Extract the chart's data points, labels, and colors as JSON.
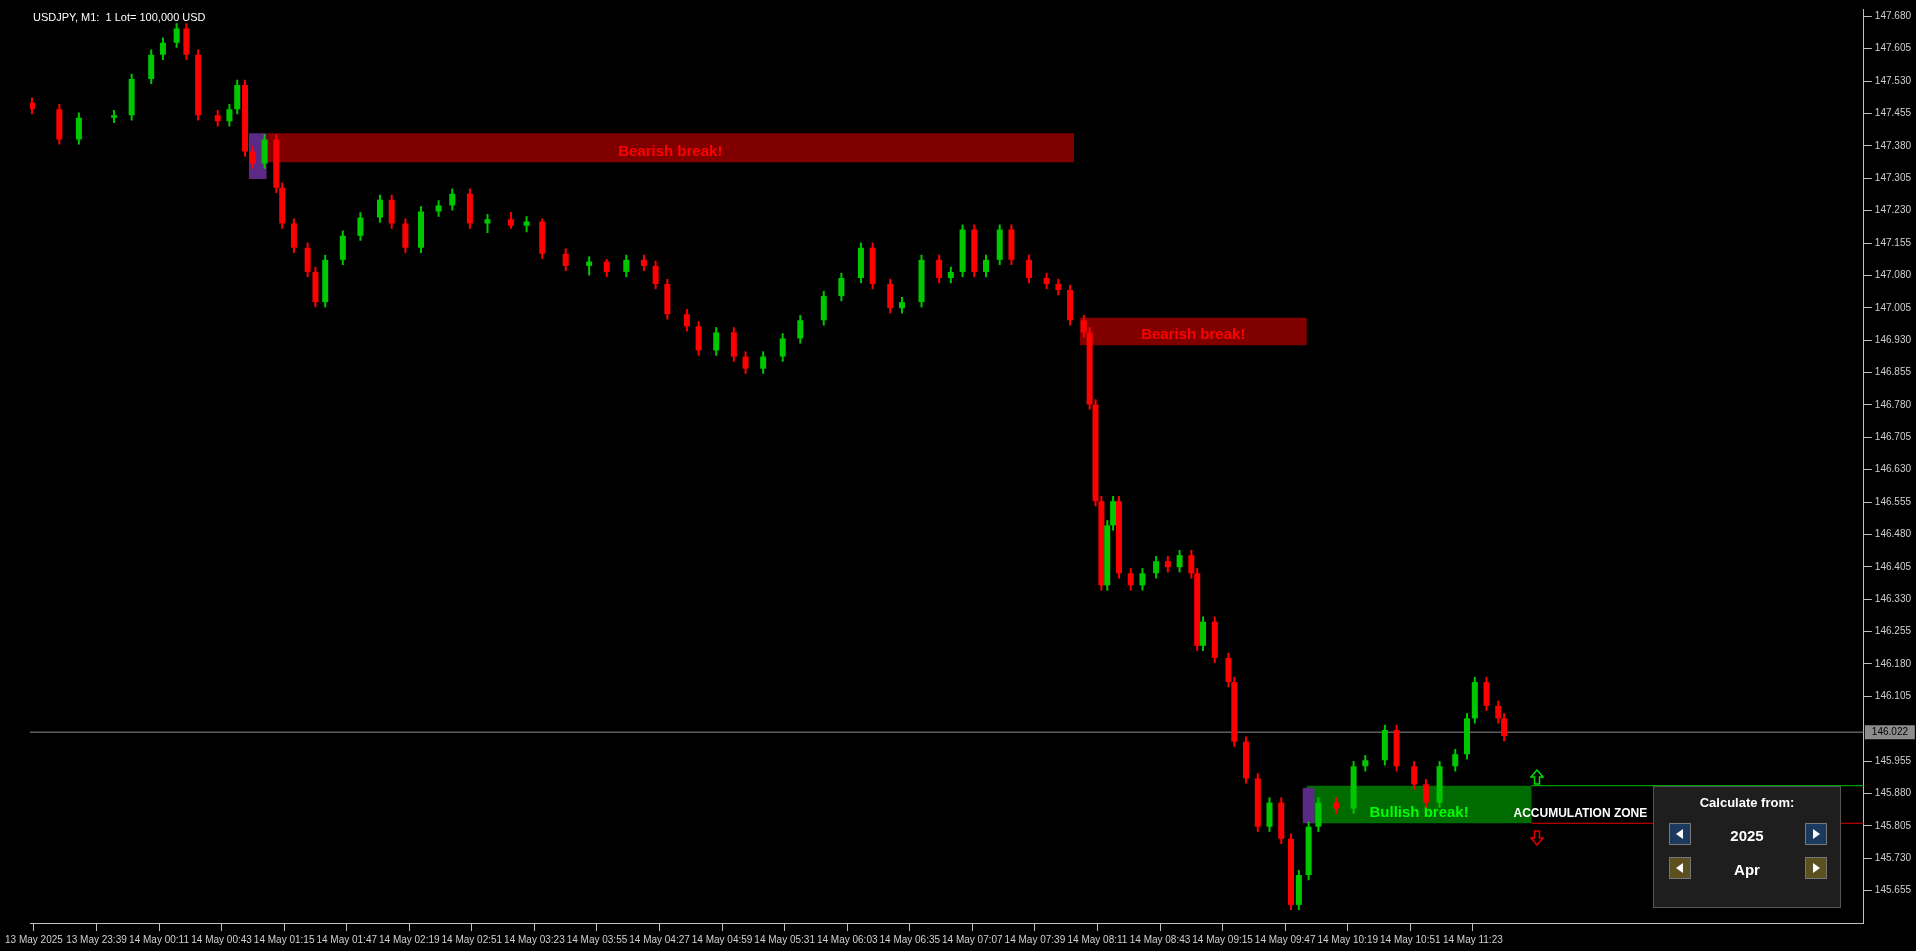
{
  "chart_data": {
    "type": "candlestick",
    "title": "USDJPY, M1:  1 Lot= 100,000 USD",
    "x": [
      "2025-05-13T23:06",
      "2025-05-13T23:20",
      "2025-05-13T23:30",
      "2025-05-13T23:48",
      "2025-05-13T23:57",
      "2025-05-14T00:07",
      "2025-05-14T00:13",
      "2025-05-14T00:20",
      "2025-05-14T00:25",
      "2025-05-14T00:31",
      "2025-05-14T00:41",
      "2025-05-14T00:47",
      "2025-05-14T00:51",
      "2025-05-14T00:55",
      "2025-05-14T00:59",
      "2025-05-14T01:05",
      "2025-05-14T01:11",
      "2025-05-14T01:14",
      "2025-05-14T01:20",
      "2025-05-14T01:27",
      "2025-05-14T01:31",
      "2025-05-14T01:36",
      "2025-05-14T01:45",
      "2025-05-14T01:54",
      "2025-05-14T02:04",
      "2025-05-14T02:10",
      "2025-05-14T02:17",
      "2025-05-14T02:25",
      "2025-05-14T02:34",
      "2025-05-14T02:41",
      "2025-05-14T02:50",
      "2025-05-14T02:59",
      "2025-05-14T03:11",
      "2025-05-14T03:19",
      "2025-05-14T03:27",
      "2025-05-14T03:39",
      "2025-05-14T03:51",
      "2025-05-14T04:00",
      "2025-05-14T04:10",
      "2025-05-14T04:19",
      "2025-05-14T04:25",
      "2025-05-14T04:31",
      "2025-05-14T04:41",
      "2025-05-14T04:47",
      "2025-05-14T04:56",
      "2025-05-14T05:05",
      "2025-05-14T05:11",
      "2025-05-14T05:20",
      "2025-05-14T05:30",
      "2025-05-14T05:39",
      "2025-05-14T05:51",
      "2025-05-14T06:00",
      "2025-05-14T06:10",
      "2025-05-14T06:16",
      "2025-05-14T06:25",
      "2025-05-14T06:31",
      "2025-05-14T06:41",
      "2025-05-14T06:50",
      "2025-05-14T06:56",
      "2025-05-14T07:02",
      "2025-05-14T07:08",
      "2025-05-14T07:14",
      "2025-05-14T07:21",
      "2025-05-14T07:27",
      "2025-05-14T07:36",
      "2025-05-14T07:45",
      "2025-05-14T07:51",
      "2025-05-14T07:57",
      "2025-05-14T08:04",
      "2025-05-14T08:07",
      "2025-05-14T08:10",
      "2025-05-14T08:13",
      "2025-05-14T08:16",
      "2025-05-14T08:19",
      "2025-05-14T08:22",
      "2025-05-14T08:28",
      "2025-05-14T08:34",
      "2025-05-14T08:41",
      "2025-05-14T08:47",
      "2025-05-14T08:53",
      "2025-05-14T08:59",
      "2025-05-14T09:02",
      "2025-05-14T09:05",
      "2025-05-14T09:11",
      "2025-05-14T09:18",
      "2025-05-14T09:21",
      "2025-05-14T09:27",
      "2025-05-14T09:33",
      "2025-05-14T09:39",
      "2025-05-14T09:45",
      "2025-05-14T09:50",
      "2025-05-14T09:54",
      "2025-05-14T09:59",
      "2025-05-14T10:04",
      "2025-05-14T10:13",
      "2025-05-14T10:22",
      "2025-05-14T10:28",
      "2025-05-14T10:38",
      "2025-05-14T10:44",
      "2025-05-14T10:53",
      "2025-05-14T10:59",
      "2025-05-14T11:06",
      "2025-05-14T11:14",
      "2025-05-14T11:20",
      "2025-05-14T11:24",
      "2025-05-14T11:30",
      "2025-05-14T11:36",
      "2025-05-14T11:39"
    ],
    "ohlc": [
      [
        147.48,
        147.492,
        147.453,
        147.465
      ],
      [
        147.465,
        147.477,
        147.383,
        147.395
      ],
      [
        147.395,
        147.457,
        147.383,
        147.445
      ],
      [
        147.445,
        147.463,
        147.433,
        147.451
      ],
      [
        147.451,
        147.547,
        147.439,
        147.535
      ],
      [
        147.535,
        147.603,
        147.523,
        147.591
      ],
      [
        147.591,
        147.631,
        147.579,
        147.619
      ],
      [
        147.619,
        147.664,
        147.607,
        147.652
      ],
      [
        147.652,
        147.664,
        147.579,
        147.591
      ],
      [
        147.591,
        147.603,
        147.439,
        147.451
      ],
      [
        147.451,
        147.463,
        147.425,
        147.437
      ],
      [
        147.437,
        147.477,
        147.425,
        147.465
      ],
      [
        147.465,
        147.533,
        147.453,
        147.521
      ],
      [
        147.521,
        147.533,
        147.355,
        147.367
      ],
      [
        147.367,
        147.379,
        147.327,
        147.339
      ],
      [
        147.339,
        147.407,
        147.327,
        147.395
      ],
      [
        147.395,
        147.407,
        147.271,
        147.283
      ],
      [
        147.283,
        147.295,
        147.188,
        147.2
      ],
      [
        147.2,
        147.212,
        147.132,
        147.144
      ],
      [
        147.144,
        147.156,
        147.076,
        147.088
      ],
      [
        147.088,
        147.1,
        147.006,
        147.018
      ],
      [
        147.018,
        147.128,
        147.006,
        147.116
      ],
      [
        147.116,
        147.184,
        147.104,
        147.172
      ],
      [
        147.172,
        147.226,
        147.16,
        147.214
      ],
      [
        147.214,
        147.267,
        147.202,
        147.255
      ],
      [
        147.255,
        147.267,
        147.188,
        147.2
      ],
      [
        147.2,
        147.212,
        147.132,
        147.144
      ],
      [
        147.144,
        147.24,
        147.132,
        147.228
      ],
      [
        147.228,
        147.254,
        147.216,
        147.242
      ],
      [
        147.242,
        147.281,
        147.23,
        147.269
      ],
      [
        147.269,
        147.281,
        147.188,
        147.2
      ],
      [
        147.2,
        147.222,
        147.178,
        147.21
      ],
      [
        147.21,
        147.227,
        147.188,
        147.195
      ],
      [
        147.195,
        147.217,
        147.18,
        147.205
      ],
      [
        147.205,
        147.212,
        147.118,
        147.13
      ],
      [
        147.13,
        147.142,
        147.09,
        147.102
      ],
      [
        147.102,
        147.124,
        147.08,
        147.112
      ],
      [
        147.112,
        147.118,
        147.076,
        147.088
      ],
      [
        147.088,
        147.128,
        147.076,
        147.116
      ],
      [
        147.116,
        147.128,
        147.09,
        147.102
      ],
      [
        147.102,
        147.114,
        147.048,
        147.06
      ],
      [
        147.06,
        147.072,
        146.978,
        146.99
      ],
      [
        146.99,
        147.002,
        146.95,
        146.962
      ],
      [
        146.962,
        146.974,
        146.894,
        146.906
      ],
      [
        146.906,
        146.96,
        146.894,
        146.948
      ],
      [
        146.948,
        146.96,
        146.88,
        146.892
      ],
      [
        146.892,
        146.904,
        146.852,
        146.864
      ],
      [
        146.864,
        146.904,
        146.852,
        146.892
      ],
      [
        146.892,
        146.946,
        146.88,
        146.934
      ],
      [
        146.934,
        146.988,
        146.922,
        146.976
      ],
      [
        146.976,
        147.044,
        146.964,
        147.032
      ],
      [
        147.032,
        147.086,
        147.02,
        147.074
      ],
      [
        147.074,
        147.156,
        147.062,
        147.144
      ],
      [
        147.144,
        147.156,
        147.048,
        147.06
      ],
      [
        147.06,
        147.072,
        146.992,
        147.004
      ],
      [
        147.004,
        147.03,
        146.992,
        147.018
      ],
      [
        147.018,
        147.128,
        147.006,
        147.116
      ],
      [
        147.116,
        147.128,
        147.062,
        147.074
      ],
      [
        147.074,
        147.1,
        147.062,
        147.088
      ],
      [
        147.088,
        147.198,
        147.076,
        147.186
      ],
      [
        147.186,
        147.198,
        147.076,
        147.088
      ],
      [
        147.088,
        147.128,
        147.076,
        147.116
      ],
      [
        147.116,
        147.198,
        147.104,
        147.186
      ],
      [
        147.186,
        147.198,
        147.104,
        147.116
      ],
      [
        147.116,
        147.128,
        147.062,
        147.074
      ],
      [
        147.074,
        147.086,
        147.048,
        147.06
      ],
      [
        147.06,
        147.072,
        147.034,
        147.046
      ],
      [
        147.046,
        147.058,
        146.964,
        146.976
      ],
      [
        146.976,
        146.988,
        146.936,
        146.948
      ],
      [
        146.948,
        146.96,
        146.769,
        146.781
      ],
      [
        146.781,
        146.793,
        146.545,
        146.557
      ],
      [
        146.557,
        146.569,
        146.35,
        146.362
      ],
      [
        146.362,
        146.513,
        146.35,
        146.501
      ],
      [
        146.501,
        146.569,
        146.489,
        146.557
      ],
      [
        146.557,
        146.569,
        146.378,
        146.39
      ],
      [
        146.39,
        146.402,
        146.35,
        146.362
      ],
      [
        146.362,
        146.402,
        146.35,
        146.39
      ],
      [
        146.39,
        146.43,
        146.378,
        146.418
      ],
      [
        146.418,
        146.43,
        146.392,
        146.404
      ],
      [
        146.404,
        146.444,
        146.392,
        146.432
      ],
      [
        146.432,
        146.444,
        146.378,
        146.39
      ],
      [
        146.39,
        146.402,
        146.21,
        146.222
      ],
      [
        146.222,
        146.29,
        146.21,
        146.278
      ],
      [
        146.278,
        146.29,
        146.182,
        146.194
      ],
      [
        146.194,
        146.206,
        146.126,
        146.138
      ],
      [
        146.138,
        146.15,
        145.988,
        146.0
      ],
      [
        146.0,
        146.012,
        145.903,
        145.915
      ],
      [
        145.915,
        145.927,
        145.791,
        145.803
      ],
      [
        145.803,
        145.871,
        145.791,
        145.859
      ],
      [
        145.859,
        145.871,
        145.763,
        145.775
      ],
      [
        145.775,
        145.787,
        145.61,
        145.622
      ],
      [
        145.622,
        145.703,
        145.61,
        145.691
      ],
      [
        145.691,
        145.815,
        145.679,
        145.803
      ],
      [
        145.803,
        145.871,
        145.791,
        145.859
      ],
      [
        145.859,
        145.871,
        145.833,
        145.845
      ],
      [
        145.845,
        145.955,
        145.833,
        145.943
      ],
      [
        145.943,
        145.969,
        145.931,
        145.957
      ],
      [
        145.957,
        146.039,
        145.945,
        146.027
      ],
      [
        146.027,
        146.039,
        145.931,
        145.943
      ],
      [
        145.943,
        145.955,
        145.889,
        145.901
      ],
      [
        145.901,
        145.913,
        145.847,
        145.859
      ],
      [
        145.859,
        145.955,
        145.847,
        145.943
      ],
      [
        145.943,
        145.983,
        145.931,
        145.971
      ],
      [
        145.971,
        146.066,
        145.959,
        146.054
      ],
      [
        146.054,
        146.15,
        146.042,
        146.138
      ],
      [
        146.138,
        146.15,
        146.071,
        146.083
      ],
      [
        146.083,
        146.095,
        146.042,
        146.054
      ],
      [
        146.054,
        146.066,
        146.001,
        146.013
      ]
    ],
    "series": [
      {
        "type": "line",
        "color": "#5b2a86",
        "x": [
          "2025-05-14T00:57",
          "2025-05-14T01:06"
        ],
        "values": [
          null,
          null
        ],
        "lower": [
          147.303,
          147.303
        ],
        "upper": [
          147.409,
          147.409
        ]
      },
      {
        "type": "line",
        "name": "Bearish break!",
        "color": "#ff0000",
        "x": [
          "2025-05-14T01:06",
          "2025-05-14T07:59"
        ],
        "values": [
          null,
          null
        ],
        "lower": [
          147.342,
          147.342
        ],
        "upper": [
          147.409,
          147.409
        ]
      },
      {
        "type": "line",
        "name": "Bearish break!",
        "color": "#ff0000",
        "x": [
          "2025-05-14T08:02",
          "2025-05-14T09:58"
        ],
        "values": [
          null,
          null
        ],
        "lower": [
          146.918,
          146.918
        ],
        "upper": [
          146.982,
          146.982
        ]
      },
      {
        "type": "line",
        "name": "Bullish break!",
        "color": "#00ff00",
        "x": [
          "2025-05-14T09:58",
          "2025-05-14T11:53"
        ],
        "values": [
          null,
          null
        ],
        "lower": [
          145.811,
          145.811
        ],
        "upper": [
          145.898,
          145.898
        ]
      },
      {
        "type": "line",
        "color": "#5b2a86",
        "x": [
          "2025-05-14T09:56",
          "2025-05-14T10:02"
        ],
        "values": [
          null,
          null
        ],
        "lower": [
          145.811,
          145.811
        ],
        "upper": [
          145.893,
          145.893
        ]
      },
      {
        "type": "line",
        "color": "#00c800",
        "x": [
          "2025-05-14T11:53",
          "2025-05-14T14:43"
        ],
        "values": [
          145.898,
          145.898
        ]
      },
      {
        "type": "line",
        "color": "#e00000",
        "x": [
          "2025-05-14T11:53",
          "2025-05-14T14:43"
        ],
        "values": [
          145.811,
          145.811
        ]
      }
    ],
    "ref_lines": [
      {
        "axis": "y",
        "value": 146.022,
        "label": "146.022",
        "color": "#8c8c8c"
      }
    ],
    "annotations": [
      {
        "text": "ACCUMULATION ZONE",
        "x": "2025-05-14T12:18",
        "y": 145.811
      },
      "Calculate from:",
      "2025",
      "Apr"
    ],
    "xlim": [
      "2025-05-13T23:05",
      "2025-05-14T14:43"
    ],
    "ylim": [
      145.58,
      147.697
    ],
    "xticks": [
      {
        "value": "2025-05-13T23:07",
        "label": "13 May 2025"
      },
      {
        "value": "2025-05-13T23:39",
        "label": "13 May 23:39"
      },
      {
        "value": "2025-05-14T00:11",
        "label": "14 May 00:11"
      },
      {
        "value": "2025-05-14T00:43",
        "label": "14 May 00:43"
      },
      {
        "value": "2025-05-14T01:15",
        "label": "14 May 01:15"
      },
      {
        "value": "2025-05-14T01:47",
        "label": "14 May 01:47"
      },
      {
        "value": "2025-05-14T02:19",
        "label": "14 May 02:19"
      },
      {
        "value": "2025-05-14T02:51",
        "label": "14 May 02:51"
      },
      {
        "value": "2025-05-14T03:23",
        "label": "14 May 03:23"
      },
      {
        "value": "2025-05-14T03:55",
        "label": "14 May 03:55"
      },
      {
        "value": "2025-05-14T04:27",
        "label": "14 May 04:27"
      },
      {
        "value": "2025-05-14T04:59",
        "label": "14 May 04:59"
      },
      {
        "value": "2025-05-14T05:31",
        "label": "14 May 05:31"
      },
      {
        "value": "2025-05-14T06:03",
        "label": "14 May 06:03"
      },
      {
        "value": "2025-05-14T06:35",
        "label": "14 May 06:35"
      },
      {
        "value": "2025-05-14T07:07",
        "label": "14 May 07:07"
      },
      {
        "value": "2025-05-14T07:39",
        "label": "14 May 07:39"
      },
      {
        "value": "2025-05-14T08:11",
        "label": "14 May 08:11"
      },
      {
        "value": "2025-05-14T08:43",
        "label": "14 May 08:43"
      },
      {
        "value": "2025-05-14T09:15",
        "label": "14 May 09:15"
      },
      {
        "value": "2025-05-14T09:47",
        "label": "14 May 09:47"
      },
      {
        "value": "2025-05-14T10:19",
        "label": "14 May 10:19"
      },
      {
        "value": "2025-05-14T10:51",
        "label": "14 May 10:51"
      },
      {
        "value": "2025-05-14T11:23",
        "label": "14 May 11:23"
      }
    ],
    "yticks": [
      {
        "value": 147.68,
        "label": "147.680"
      },
      {
        "value": 147.605,
        "label": "147.605"
      },
      {
        "value": 147.53,
        "label": "147.530"
      },
      {
        "value": 147.455,
        "label": "147.455"
      },
      {
        "value": 147.38,
        "label": "147.380"
      },
      {
        "value": 147.305,
        "label": "147.305"
      },
      {
        "value": 147.23,
        "label": "147.230"
      },
      {
        "value": 147.155,
        "label": "147.155"
      },
      {
        "value": 147.08,
        "label": "147.080"
      },
      {
        "value": 147.005,
        "label": "147.005"
      },
      {
        "value": 146.93,
        "label": "146.930"
      },
      {
        "value": 146.855,
        "label": "146.855"
      },
      {
        "value": 146.78,
        "label": "146.780"
      },
      {
        "value": 146.705,
        "label": "146.705"
      },
      {
        "value": 146.63,
        "label": "146.630"
      },
      {
        "value": 146.555,
        "label": "146.555"
      },
      {
        "value": 146.48,
        "label": "146.480"
      },
      {
        "value": 146.405,
        "label": "146.405"
      },
      {
        "value": 146.33,
        "label": "146.330"
      },
      {
        "value": 146.255,
        "label": "146.255"
      },
      {
        "value": 146.18,
        "label": "146.180"
      },
      {
        "value": 146.105,
        "label": "146.105"
      },
      {
        "value": 145.955,
        "label": "145.955"
      },
      {
        "value": 145.88,
        "label": "145.880"
      },
      {
        "value": 145.805,
        "label": "145.805"
      },
      {
        "value": 145.73,
        "label": "145.730"
      },
      {
        "value": 145.655,
        "label": "145.655"
      }
    ]
  }
}
